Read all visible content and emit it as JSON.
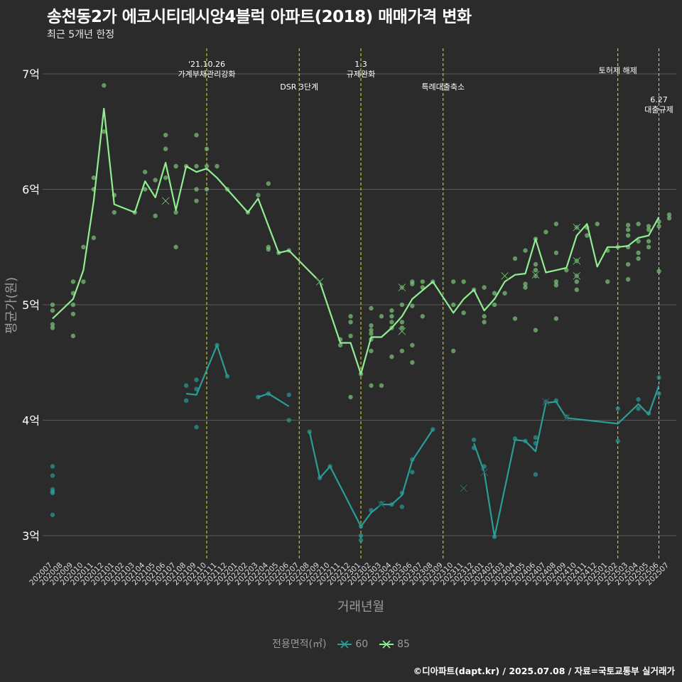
{
  "chart_data": {
    "type": "line",
    "title": "송천동2가 에코시티데시앙4블럭 아파트(2018) 매매가격 변화",
    "subtitle": "최근 5개년 한정",
    "xlabel": "거래년월",
    "ylabel": "평균가(원)",
    "yticks": [
      {
        "v": 3,
        "label": "3억"
      },
      {
        "v": 4,
        "label": "4억"
      },
      {
        "v": 5,
        "label": "5억"
      },
      {
        "v": 6,
        "label": "6억"
      },
      {
        "v": 7,
        "label": "7억"
      }
    ],
    "ylim": [
      2.78,
      7.2
    ],
    "x": [
      "202007",
      "202008",
      "202009",
      "202010",
      "202011",
      "202012",
      "202101",
      "202102",
      "202103",
      "202104",
      "202105",
      "202106",
      "202107",
      "202108",
      "202109",
      "202110",
      "202111",
      "202112",
      "202201",
      "202202",
      "202203",
      "202204",
      "202205",
      "202206",
      "202207",
      "202208",
      "202209",
      "202210",
      "202211",
      "202212",
      "202301",
      "202302",
      "202303",
      "202304",
      "202305",
      "202306",
      "202307",
      "202308",
      "202309",
      "202310",
      "202311",
      "202312",
      "202401",
      "202402",
      "202403",
      "202404",
      "202405",
      "202406",
      "202407",
      "202408",
      "202409",
      "202410",
      "202411",
      "202412",
      "202501",
      "202502",
      "202503",
      "202504",
      "202505",
      "202506",
      "202507"
    ],
    "x_ticks_shown": [
      "202007",
      "202008",
      "202009",
      "202010",
      "202011",
      "202012",
      "202101",
      "202102",
      "202103",
      "202104",
      "202105",
      "202106",
      "202107",
      "202108",
      "202109",
      "202110",
      "202111",
      "202112",
      "202201",
      "202202",
      "202203",
      "202204",
      "202205",
      "202206",
      "202207",
      "202208",
      "202209",
      "202210",
      "202211",
      "202212",
      "202301",
      "202302",
      "202303",
      "202304",
      "202305",
      "202306",
      "202307",
      "202308",
      "202309",
      "202310",
      "202311",
      "202312",
      "202401",
      "202402",
      "202403",
      "202404",
      "202405",
      "202406",
      "202407",
      "202408",
      "202409",
      "202410",
      "202411",
      "202412",
      "202501",
      "202502",
      "202503",
      "202504",
      "202505",
      "202506",
      "202507"
    ],
    "series": [
      {
        "name": "85",
        "color": "#90ee90",
        "points": [
          [
            "202007",
            4.88
          ],
          [
            "202009",
            5.05
          ],
          [
            "202010",
            5.3
          ],
          [
            "202011",
            5.9
          ],
          [
            "202012",
            6.7
          ],
          [
            "202101",
            5.87
          ],
          [
            "202103",
            5.8
          ],
          [
            "202104",
            6.07
          ],
          [
            "202105",
            5.93
          ],
          [
            "202106",
            6.23
          ],
          [
            "202107",
            5.82
          ],
          [
            "202108",
            6.2
          ],
          [
            "202109",
            6.15
          ],
          [
            "202110",
            6.18
          ],
          [
            "202111",
            6.1
          ],
          [
            "202112",
            6.0
          ],
          [
            "202202",
            5.8
          ],
          [
            "202203",
            5.92
          ],
          [
            "202205",
            5.45
          ],
          [
            "202206",
            5.47
          ],
          [
            "202209",
            5.2
          ],
          [
            "202211",
            4.67
          ],
          [
            "202212",
            4.67
          ],
          [
            "202301",
            4.4
          ],
          [
            "202302",
            4.72
          ],
          [
            "202303",
            4.72
          ],
          [
            "202304",
            4.8
          ],
          [
            "202305",
            4.9
          ],
          [
            "202306",
            5.05
          ],
          [
            "202308",
            5.2
          ],
          [
            "202310",
            4.93
          ],
          [
            "202311",
            5.05
          ],
          [
            "202312",
            5.13
          ],
          [
            "202401",
            4.95
          ],
          [
            "202402",
            5.05
          ],
          [
            "202403",
            5.2
          ],
          [
            "202404",
            5.26
          ],
          [
            "202405",
            5.27
          ],
          [
            "202406",
            5.57
          ],
          [
            "202407",
            5.28
          ],
          [
            "202408",
            5.3
          ],
          [
            "202409",
            5.32
          ],
          [
            "202410",
            5.6
          ],
          [
            "202411",
            5.7
          ],
          [
            "202412",
            5.33
          ],
          [
            "202501",
            5.5
          ],
          [
            "202502",
            5.5
          ],
          [
            "202503",
            5.51
          ],
          [
            "202504",
            5.58
          ],
          [
            "202505",
            5.6
          ],
          [
            "202506",
            5.76
          ]
        ]
      },
      {
        "name": "60",
        "color": "#2a9d98",
        "points": [
          [
            "202108",
            4.23
          ],
          [
            "202109",
            4.22
          ],
          [
            "202111",
            4.65
          ],
          [
            "202112",
            4.38
          ],
          null,
          [
            "202203",
            4.2
          ],
          [
            "202204",
            4.23
          ],
          [
            "202206",
            4.12
          ],
          null,
          [
            "202208",
            3.9
          ],
          [
            "202209",
            3.5
          ],
          [
            "202210",
            3.6
          ],
          [
            "202301",
            3.08
          ],
          [
            "202302",
            3.2
          ],
          [
            "202303",
            3.27
          ],
          [
            "202304",
            3.27
          ],
          [
            "202305",
            3.35
          ],
          [
            "202306",
            3.65
          ],
          [
            "202308",
            3.92
          ],
          null,
          [
            "202312",
            3.8
          ],
          [
            "202401",
            3.55
          ],
          [
            "202402",
            2.99
          ],
          [
            "202404",
            3.83
          ],
          [
            "202405",
            3.82
          ],
          [
            "202406",
            3.73
          ],
          [
            "202407",
            4.15
          ],
          [
            "202408",
            4.16
          ],
          [
            "202409",
            4.02
          ],
          [
            "202502",
            3.97
          ],
          [
            "202504",
            4.14
          ],
          [
            "202505",
            4.05
          ],
          [
            "202506",
            4.3
          ]
        ]
      }
    ],
    "scatter_85": [
      [
        "202007",
        5.0
      ],
      [
        "202007",
        4.95
      ],
      [
        "202007",
        4.83
      ],
      [
        "202007",
        4.8
      ],
      [
        "202009",
        5.2
      ],
      [
        "202009",
        5.1
      ],
      [
        "202009",
        5.0
      ],
      [
        "202009",
        4.92
      ],
      [
        "202009",
        4.73
      ],
      [
        "202010",
        5.5
      ],
      [
        "202010",
        5.2
      ],
      [
        "202011",
        6.1
      ],
      [
        "202011",
        6.0
      ],
      [
        "202011",
        5.58
      ],
      [
        "202012",
        6.9
      ],
      [
        "202012",
        6.5
      ],
      [
        "202101",
        5.95
      ],
      [
        "202101",
        5.8
      ],
      [
        "202103",
        5.8
      ],
      [
        "202104",
        6.15
      ],
      [
        "202104",
        6.0
      ],
      [
        "202105",
        6.08
      ],
      [
        "202105",
        5.77
      ],
      [
        "202106",
        6.47
      ],
      [
        "202106",
        6.35
      ],
      [
        "202106",
        6.1
      ],
      [
        "202107",
        6.2
      ],
      [
        "202107",
        5.8
      ],
      [
        "202107",
        5.5
      ],
      [
        "202108",
        6.2
      ],
      [
        "202109",
        6.47
      ],
      [
        "202109",
        6.2
      ],
      [
        "202109",
        6.0
      ],
      [
        "202109",
        5.9
      ],
      [
        "202110",
        6.35
      ],
      [
        "202110",
        6.2
      ],
      [
        "202110",
        6.0
      ],
      [
        "202111",
        6.2
      ],
      [
        "202112",
        6.0
      ],
      [
        "202202",
        5.8
      ],
      [
        "202203",
        5.95
      ],
      [
        "202204",
        6.05
      ],
      [
        "202204",
        5.5
      ],
      [
        "202204",
        5.48
      ],
      [
        "202205",
        5.45
      ],
      [
        "202206",
        5.47
      ],
      [
        "202211",
        4.65
      ],
      [
        "202211",
        4.7
      ],
      [
        "202212",
        4.9
      ],
      [
        "202212",
        4.85
      ],
      [
        "202212",
        4.73
      ],
      [
        "202212",
        4.2
      ],
      [
        "202301",
        4.4
      ],
      [
        "202302",
        4.97
      ],
      [
        "202302",
        4.82
      ],
      [
        "202302",
        4.78
      ],
      [
        "202302",
        4.75
      ],
      [
        "202302",
        4.7
      ],
      [
        "202302",
        4.6
      ],
      [
        "202302",
        4.3
      ],
      [
        "202303",
        4.9
      ],
      [
        "202303",
        4.3
      ],
      [
        "202304",
        4.95
      ],
      [
        "202304",
        4.9
      ],
      [
        "202304",
        4.85
      ],
      [
        "202304",
        4.8
      ],
      [
        "202304",
        4.55
      ],
      [
        "202305",
        5.15
      ],
      [
        "202305",
        5.0
      ],
      [
        "202305",
        4.85
      ],
      [
        "202305",
        4.8
      ],
      [
        "202305",
        4.6
      ],
      [
        "202306",
        5.2
      ],
      [
        "202306",
        5.18
      ],
      [
        "202306",
        4.99
      ],
      [
        "202306",
        4.65
      ],
      [
        "202306",
        4.5
      ],
      [
        "202307",
        5.2
      ],
      [
        "202307",
        5.15
      ],
      [
        "202307",
        4.9
      ],
      [
        "202308",
        5.2
      ],
      [
        "202310",
        5.2
      ],
      [
        "202310",
        5.0
      ],
      [
        "202310",
        4.6
      ],
      [
        "202311",
        5.2
      ],
      [
        "202311",
        4.93
      ],
      [
        "202312",
        5.13
      ],
      [
        "202401",
        5.15
      ],
      [
        "202401",
        4.9
      ],
      [
        "202401",
        4.85
      ],
      [
        "202402",
        5.1
      ],
      [
        "202402",
        5.0
      ],
      [
        "202403",
        5.1
      ],
      [
        "202404",
        5.4
      ],
      [
        "202404",
        4.88
      ],
      [
        "202405",
        5.47
      ],
      [
        "202405",
        5.18
      ],
      [
        "202405",
        5.15
      ],
      [
        "202406",
        5.57
      ],
      [
        "202406",
        5.35
      ],
      [
        "202406",
        5.3
      ],
      [
        "202406",
        5.25
      ],
      [
        "202406",
        4.78
      ],
      [
        "202407",
        5.63
      ],
      [
        "202408",
        5.7
      ],
      [
        "202408",
        5.45
      ],
      [
        "202408",
        5.2
      ],
      [
        "202408",
        5.17
      ],
      [
        "202408",
        4.88
      ],
      [
        "202409",
        5.3
      ],
      [
        "202410",
        5.67
      ],
      [
        "202410",
        5.38
      ],
      [
        "202410",
        5.25
      ],
      [
        "202410",
        5.2
      ],
      [
        "202410",
        5.13
      ],
      [
        "202411",
        5.67
      ],
      [
        "202411",
        5.6
      ],
      [
        "202412",
        5.7
      ],
      [
        "202501",
        5.47
      ],
      [
        "202501",
        5.2
      ],
      [
        "202502",
        5.5
      ],
      [
        "202503",
        5.69
      ],
      [
        "202503",
        5.65
      ],
      [
        "202503",
        5.6
      ],
      [
        "202503",
        5.5
      ],
      [
        "202503",
        5.35
      ],
      [
        "202503",
        5.22
      ],
      [
        "202504",
        5.7
      ],
      [
        "202504",
        5.55
      ],
      [
        "202504",
        5.45
      ],
      [
        "202504",
        5.4
      ],
      [
        "202505",
        5.68
      ],
      [
        "202505",
        5.65
      ],
      [
        "202505",
        5.55
      ],
      [
        "202505",
        5.5
      ],
      [
        "202506",
        5.72
      ],
      [
        "202506",
        5.68
      ],
      [
        "202506",
        5.29
      ],
      [
        "202507",
        5.78
      ],
      [
        "202507",
        5.75
      ]
    ],
    "scatter_60": [
      [
        "202007",
        3.6
      ],
      [
        "202007",
        3.52
      ],
      [
        "202007",
        3.4
      ],
      [
        "202007",
        3.38
      ],
      [
        "202007",
        3.37
      ],
      [
        "202007",
        3.18
      ],
      [
        "202108",
        4.3
      ],
      [
        "202108",
        4.17
      ],
      [
        "202109",
        4.35
      ],
      [
        "202109",
        4.27
      ],
      [
        "202109",
        3.94
      ],
      [
        "202111",
        4.65
      ],
      [
        "202112",
        4.38
      ],
      [
        "202203",
        4.2
      ],
      [
        "202204",
        4.23
      ],
      [
        "202206",
        4.22
      ],
      [
        "202206",
        4.0
      ],
      [
        "202208",
        3.9
      ],
      [
        "202209",
        3.5
      ],
      [
        "202210",
        3.6
      ],
      [
        "202301",
        3.08
      ],
      [
        "202301",
        3.0
      ],
      [
        "202301",
        2.96
      ],
      [
        "202302",
        3.22
      ],
      [
        "202303",
        3.28
      ],
      [
        "202304",
        3.27
      ],
      [
        "202305",
        3.37
      ],
      [
        "202305",
        3.25
      ],
      [
        "202306",
        3.66
      ],
      [
        "202306",
        3.55
      ],
      [
        "202308",
        3.92
      ],
      [
        "202312",
        3.83
      ],
      [
        "202312",
        3.76
      ],
      [
        "202401",
        3.6
      ],
      [
        "202402",
        2.99
      ],
      [
        "202404",
        3.84
      ],
      [
        "202405",
        3.82
      ],
      [
        "202406",
        3.85
      ],
      [
        "202406",
        3.8
      ],
      [
        "202406",
        3.53
      ],
      [
        "202407",
        4.16
      ],
      [
        "202408",
        4.17
      ],
      [
        "202409",
        4.03
      ],
      [
        "202502",
        4.1
      ],
      [
        "202502",
        3.82
      ],
      [
        "202504",
        4.18
      ],
      [
        "202504",
        4.1
      ],
      [
        "202505",
        4.06
      ],
      [
        "202506",
        4.37
      ],
      [
        "202506",
        4.23
      ]
    ],
    "cross_85": [
      [
        "202106",
        5.9
      ],
      [
        "202209",
        5.2
      ],
      [
        "202305",
        5.15
      ],
      [
        "202305",
        4.77
      ],
      [
        "202403",
        5.25
      ],
      [
        "202406",
        5.26
      ],
      [
        "202410",
        5.67
      ],
      [
        "202410",
        5.38
      ],
      [
        "202410",
        5.25
      ]
    ],
    "cross_60": [
      [
        "202303",
        3.27
      ],
      [
        "202311",
        3.41
      ],
      [
        "202401",
        3.55
      ],
      [
        "202407",
        4.16
      ],
      [
        "202409",
        4.02
      ]
    ],
    "events": [
      {
        "x": "202110",
        "lines": [
          "'21.10.26",
          "가계부채관리강화"
        ],
        "level": 0
      },
      {
        "x": "202207",
        "lines": [
          "DSR 3단계"
        ],
        "level": 1
      },
      {
        "x": "202301",
        "lines": [
          "1.3",
          "규제완화"
        ],
        "level": 0
      },
      {
        "x": "202309",
        "lines": [
          "특례대출축소"
        ],
        "level": 1
      },
      {
        "x": "202502",
        "lines": [
          "토허제 해제"
        ],
        "level": 2
      },
      {
        "x": "202506",
        "lines": [
          "6.27",
          "대출규제"
        ],
        "level": 3
      }
    ],
    "legend_title": "전용면적(㎡)",
    "caption": "©디아파트(dapt.kr) / 2025.07.08 / 자료=국토교통부 실거래가"
  }
}
